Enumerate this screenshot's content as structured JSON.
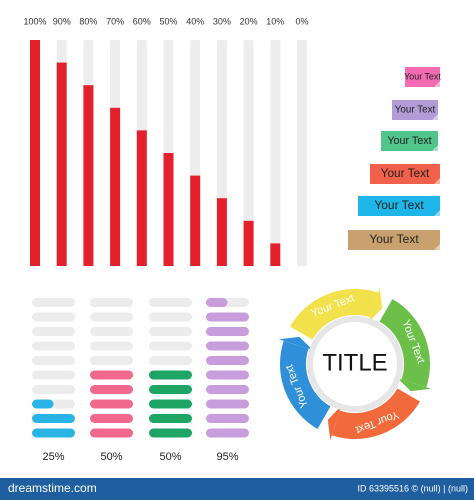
{
  "chart_data": [
    {
      "type": "bar",
      "values": [
        100,
        90,
        80,
        70,
        60,
        50,
        40,
        30,
        20,
        10,
        0
      ],
      "value_labels": [
        "100%",
        "90%",
        "80%",
        "70%",
        "60%",
        "50%",
        "40%",
        "30%",
        "20%",
        "10%",
        "0%"
      ],
      "ylim": [
        0,
        100
      ],
      "color": "#e3202b",
      "track_color": "#ededed"
    },
    {
      "type": "pills",
      "values": [
        25,
        50,
        50,
        95
      ],
      "value_labels": [
        "25%",
        "50%",
        "50%",
        "95%"
      ],
      "ylim": [
        0,
        100
      ],
      "colors": [
        "#2ab4e6",
        "#f0698c",
        "#1ea463",
        "#c79ddb"
      ],
      "track_color": "#ececec"
    }
  ],
  "tags": [
    {
      "text": "Your Text",
      "color": "#f46bb4"
    },
    {
      "text": "Your Text",
      "color": "#b39bd8"
    },
    {
      "text": "Your Text",
      "color": "#4fc58b"
    },
    {
      "text": "Your Text",
      "color": "#f0604a"
    },
    {
      "text": "Your Text",
      "color": "#1eb6e9"
    },
    {
      "text": "Your Text",
      "color": "#c9a16f"
    }
  ],
  "cycle": {
    "title": "TITLE",
    "segments": [
      {
        "text": "Your Text",
        "color": "#f2e14a"
      },
      {
        "text": "Your Text",
        "color": "#6cc04a"
      },
      {
        "text": "Your Text",
        "color": "#f26a3c"
      },
      {
        "text": "Your Text",
        "color": "#2f8fd8"
      }
    ]
  },
  "footer": {
    "brand": "dreamstime.com",
    "id": "ID 63395516 © (null) | (null)"
  }
}
